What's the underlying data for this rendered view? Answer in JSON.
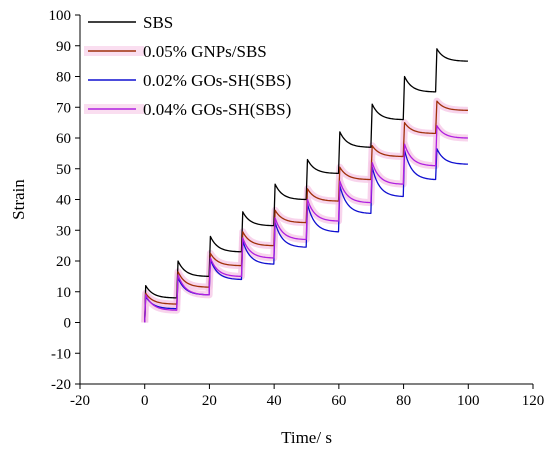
{
  "chart_data": {
    "type": "line",
    "title": "",
    "xlabel": "Time/ s",
    "ylabel": "Strain",
    "xlim": [
      -20,
      120
    ],
    "ylim": [
      -20,
      100
    ],
    "xticks": [
      -20,
      0,
      20,
      40,
      60,
      80,
      100,
      120
    ],
    "yticks": [
      -20,
      -10,
      0,
      10,
      20,
      30,
      40,
      50,
      60,
      70,
      80,
      90,
      100
    ],
    "grid": false,
    "legend_position": "top-left",
    "cycle_period_s": 10,
    "cycles": 10,
    "series": [
      {
        "name": "SBS",
        "color": "#000000",
        "peaks": [
          12,
          20,
          28,
          36,
          45,
          53,
          62,
          71,
          80,
          89
        ],
        "cycle_end_values": [
          8,
          15,
          23,
          31.5,
          40,
          48.5,
          57,
          66,
          75,
          85
        ]
      },
      {
        "name": "0.05% GNPs/SBS",
        "color": "#a0300a",
        "peaks": [
          9.5,
          16.5,
          22.5,
          29.5,
          36.5,
          43.5,
          50.5,
          57.5,
          65,
          72
        ],
        "cycle_end_values": [
          6,
          11.5,
          18.5,
          25,
          32.5,
          39.5,
          46.5,
          54,
          61.5,
          69
        ]
      },
      {
        "name": "0.02% GOs-SH(SBS)",
        "color": "#1010d0",
        "peaks": [
          8.5,
          14.5,
          20.5,
          26.5,
          32.5,
          38.5,
          44.5,
          50.5,
          56,
          56.5
        ],
        "cycle_end_values": [
          4.5,
          9,
          14,
          19,
          24.5,
          29.5,
          35.5,
          41,
          46.5,
          51.5
        ]
      },
      {
        "name": "0.04% GOs-SH(SBS)",
        "color": "#b020e0",
        "peaks": [
          9,
          15.5,
          21,
          27.5,
          34,
          40,
          46,
          52,
          58,
          64
        ],
        "cycle_end_values": [
          4,
          9,
          15,
          21,
          27,
          33,
          39,
          45,
          51,
          60
        ]
      }
    ]
  }
}
